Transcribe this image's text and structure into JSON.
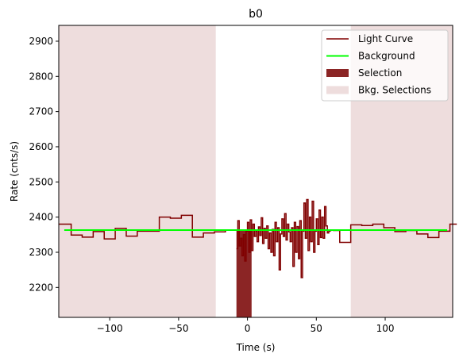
{
  "chart_data": {
    "type": "line",
    "title": "b0",
    "xlabel": "Time (s)",
    "ylabel": "Rate (cnts/s)",
    "xlim": [
      -137,
      149
    ],
    "ylim": [
      2115,
      2945
    ],
    "xticks": [
      -100,
      -50,
      0,
      50,
      100
    ],
    "xtick_labels": [
      "−100",
      "−50",
      "0",
      "50",
      "100"
    ],
    "yticks": [
      2200,
      2300,
      2400,
      2500,
      2600,
      2700,
      2800,
      2900
    ],
    "ytick_labels": [
      "2200",
      "2300",
      "2400",
      "2500",
      "2600",
      "2700",
      "2800",
      "2900"
    ],
    "grid": false,
    "legend_position": "top-right",
    "legend": [
      {
        "label": "Light Curve",
        "kind": "line",
        "color": "#800000"
      },
      {
        "label": "Background",
        "kind": "line",
        "color": "#00ff00"
      },
      {
        "label": "Selection",
        "kind": "patch",
        "color": "#8b2525"
      },
      {
        "label": "Bkg. Selections",
        "kind": "patch",
        "color": "#eedddd"
      }
    ],
    "colors": {
      "light_curve": "#800000",
      "background": "#00ff00",
      "selection": "#8b2525",
      "bkg_selection": "#eedddd"
    },
    "background_level": 2363,
    "background_range": [
      -133,
      145
    ],
    "selection_range": [
      -8,
      3
    ],
    "bkg_selection_ranges": [
      [
        -137,
        -23
      ],
      [
        75,
        149
      ]
    ],
    "light_curve_coarse": [
      {
        "x": -137,
        "y": 2380
      },
      {
        "x": -128,
        "y": 2349
      },
      {
        "x": -120,
        "y": 2343
      },
      {
        "x": -112,
        "y": 2359
      },
      {
        "x": -104,
        "y": 2338
      },
      {
        "x": -96,
        "y": 2368
      },
      {
        "x": -88,
        "y": 2346
      },
      {
        "x": -80,
        "y": 2360
      },
      {
        "x": -72,
        "y": 2360
      },
      {
        "x": -64,
        "y": 2400
      },
      {
        "x": -56,
        "y": 2397
      },
      {
        "x": -48,
        "y": 2405
      },
      {
        "x": -40,
        "y": 2343
      },
      {
        "x": -32,
        "y": 2355
      },
      {
        "x": -24,
        "y": 2358
      },
      {
        "x": -16,
        "y": 2363
      }
    ],
    "light_curve_fine": [
      {
        "x": -8,
        "y": 2310
      },
      {
        "x": -7,
        "y": 2390
      },
      {
        "x": -6,
        "y": 2318
      },
      {
        "x": -5,
        "y": 2340
      },
      {
        "x": -4,
        "y": 2290
      },
      {
        "x": -3,
        "y": 2350
      },
      {
        "x": -2,
        "y": 2275
      },
      {
        "x": -1,
        "y": 2360
      },
      {
        "x": 0,
        "y": 2385
      },
      {
        "x": 1,
        "y": 2300
      },
      {
        "x": 2,
        "y": 2392
      },
      {
        "x": 3,
        "y": 2305
      },
      {
        "x": 4,
        "y": 2380
      },
      {
        "x": 5,
        "y": 2345
      },
      {
        "x": 6,
        "y": 2360
      },
      {
        "x": 7,
        "y": 2330
      },
      {
        "x": 8,
        "y": 2372
      },
      {
        "x": 9,
        "y": 2348
      },
      {
        "x": 10,
        "y": 2398
      },
      {
        "x": 11,
        "y": 2325
      },
      {
        "x": 12,
        "y": 2368
      },
      {
        "x": 13,
        "y": 2340
      },
      {
        "x": 14,
        "y": 2375
      },
      {
        "x": 15,
        "y": 2310
      },
      {
        "x": 16,
        "y": 2355
      },
      {
        "x": 17,
        "y": 2300
      },
      {
        "x": 18,
        "y": 2365
      },
      {
        "x": 19,
        "y": 2290
      },
      {
        "x": 20,
        "y": 2385
      },
      {
        "x": 21,
        "y": 2330
      },
      {
        "x": 22,
        "y": 2370
      },
      {
        "x": 23,
        "y": 2250
      },
      {
        "x": 24,
        "y": 2352
      },
      {
        "x": 25,
        "y": 2395
      },
      {
        "x": 26,
        "y": 2345
      },
      {
        "x": 27,
        "y": 2410
      },
      {
        "x": 28,
        "y": 2335
      },
      {
        "x": 29,
        "y": 2380
      },
      {
        "x": 30,
        "y": 2358
      },
      {
        "x": 31,
        "y": 2330
      },
      {
        "x": 32,
        "y": 2370
      },
      {
        "x": 33,
        "y": 2260
      },
      {
        "x": 34,
        "y": 2385
      },
      {
        "x": 35,
        "y": 2300
      },
      {
        "x": 36,
        "y": 2373
      },
      {
        "x": 37,
        "y": 2282
      },
      {
        "x": 38,
        "y": 2390
      },
      {
        "x": 39,
        "y": 2228
      },
      {
        "x": 40,
        "y": 2360
      },
      {
        "x": 41,
        "y": 2440
      },
      {
        "x": 42,
        "y": 2340
      },
      {
        "x": 43,
        "y": 2450
      },
      {
        "x": 44,
        "y": 2305
      },
      {
        "x": 45,
        "y": 2400
      },
      {
        "x": 46,
        "y": 2330
      },
      {
        "x": 47,
        "y": 2445
      },
      {
        "x": 48,
        "y": 2300
      },
      {
        "x": 49,
        "y": 2360
      },
      {
        "x": 50,
        "y": 2395
      },
      {
        "x": 51,
        "y": 2322
      },
      {
        "x": 52,
        "y": 2420
      },
      {
        "x": 53,
        "y": 2342
      },
      {
        "x": 54,
        "y": 2400
      },
      {
        "x": 55,
        "y": 2340
      },
      {
        "x": 56,
        "y": 2430
      },
      {
        "x": 57,
        "y": 2375
      },
      {
        "x": 58,
        "y": 2355
      },
      {
        "x": 59,
        "y": 2360
      },
      {
        "x": 60,
        "y": 2362
      }
    ],
    "light_curve_after": [
      {
        "x": 62,
        "y": 2362
      },
      {
        "x": 67,
        "y": 2328
      },
      {
        "x": 75,
        "y": 2378
      },
      {
        "x": 83,
        "y": 2376
      },
      {
        "x": 91,
        "y": 2380
      },
      {
        "x": 99,
        "y": 2370
      },
      {
        "x": 107,
        "y": 2359
      },
      {
        "x": 115,
        "y": 2362
      },
      {
        "x": 123,
        "y": 2352
      },
      {
        "x": 131,
        "y": 2342
      },
      {
        "x": 139,
        "y": 2360
      },
      {
        "x": 147,
        "y": 2380
      }
    ]
  }
}
